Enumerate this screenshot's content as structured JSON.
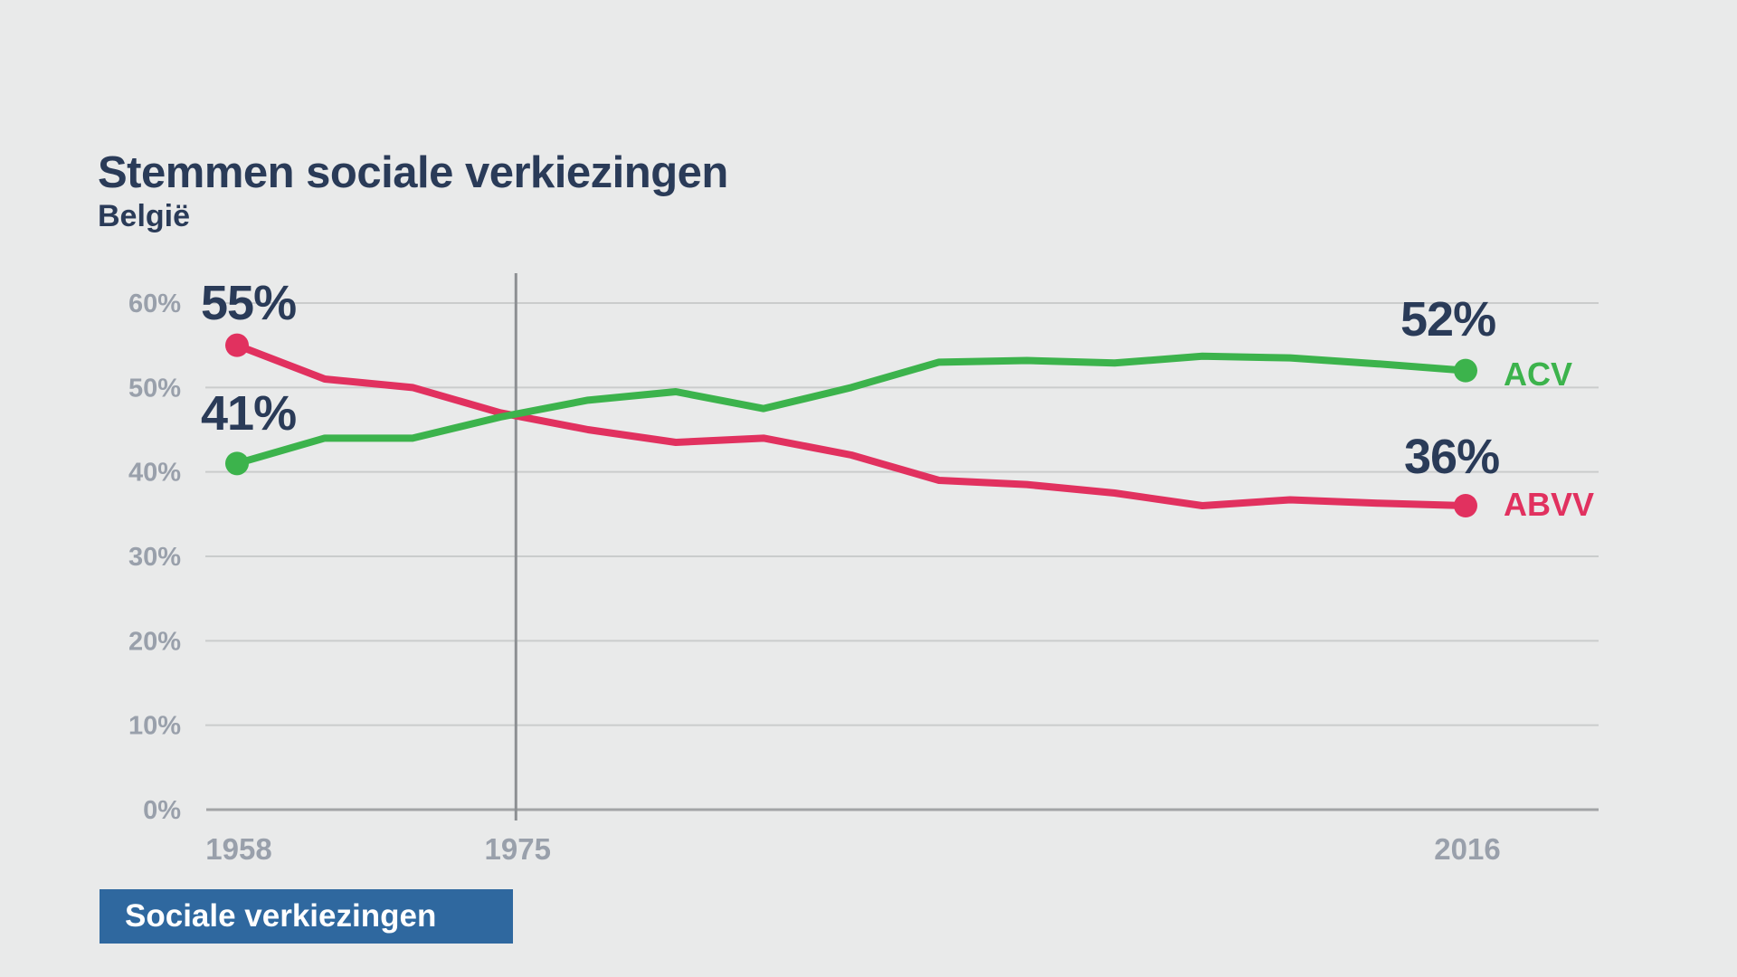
{
  "page": {
    "background_color": "#e9eaea"
  },
  "header": {
    "title": "Stemmen sociale verkiezingen",
    "subtitle": "België"
  },
  "chart_data": {
    "type": "line",
    "title": "Stemmen sociale verkiezingen",
    "subtitle": "België",
    "unit": "%",
    "grid": true,
    "ylim": [
      0,
      62
    ],
    "y_ticks": [
      {
        "label": "0%",
        "value": 0
      },
      {
        "label": "10%",
        "value": 10
      },
      {
        "label": "20%",
        "value": 20
      },
      {
        "label": "30%",
        "value": 30
      },
      {
        "label": "40%",
        "value": 40
      },
      {
        "label": "50%",
        "value": 50
      },
      {
        "label": "60%",
        "value": 60
      }
    ],
    "x_ticks": [
      {
        "label": "1958",
        "x_frac": 0
      },
      {
        "label": "1975",
        "x_frac": 0.227
      },
      {
        "label": "2016",
        "x_frac": 1
      }
    ],
    "vertical_marker": {
      "year_label": "1975",
      "x_frac": 0.227
    },
    "series": [
      {
        "name": "ACV",
        "color": "#3cb34c",
        "first_value": 41,
        "first_value_label": "41%",
        "last_value": 52,
        "last_value_label": "52%",
        "values": [
          41,
          44,
          44,
          46.5,
          48.5,
          49.5,
          47.5,
          50,
          53,
          53.2,
          52.9,
          53.7,
          53.5,
          52.8,
          52
        ]
      },
      {
        "name": "ABVV",
        "color": "#e1315f",
        "first_value": 55,
        "first_value_label": "55%",
        "last_value": 36,
        "last_value_label": "36%",
        "values": [
          55,
          51,
          50,
          47,
          45,
          43.5,
          44,
          42,
          39,
          38.5,
          37.5,
          36,
          36.7,
          36.3,
          36
        ]
      }
    ],
    "axis_colors": {
      "grid_line": "#cacccc",
      "zero_line": "#a2a4a6",
      "marker_line": "#8c8f92",
      "tick_text": "#99a0ab"
    }
  },
  "footer_badge": {
    "label": "Sociale verkiezingen"
  }
}
